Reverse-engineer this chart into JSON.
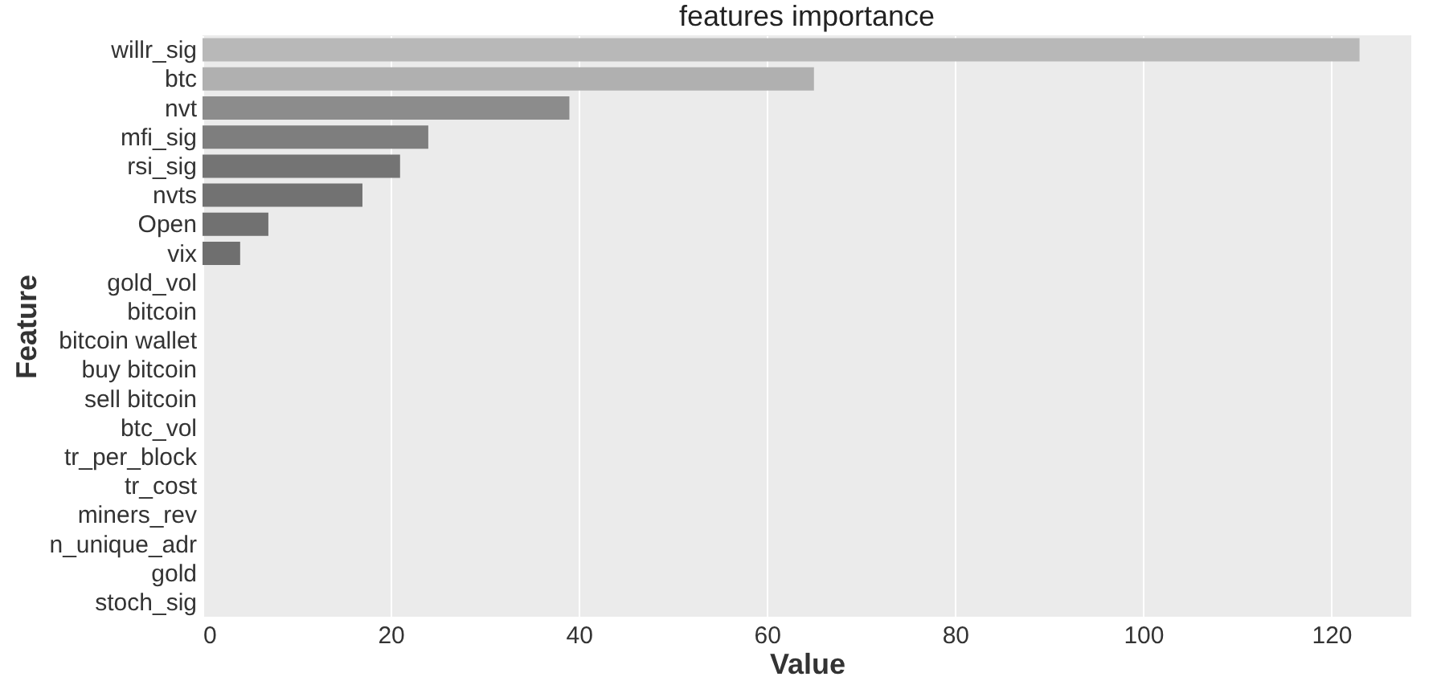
{
  "chart_data": {
    "type": "bar",
    "orientation": "horizontal",
    "title": "features importance",
    "xlabel": "Value",
    "ylabel": "Feature",
    "categories": [
      "willr_sig",
      "btc",
      "nvt",
      "mfi_sig",
      "rsi_sig",
      "nvts",
      "Open",
      "vix",
      "gold_vol",
      "bitcoin",
      "bitcoin wallet",
      "buy bitcoin",
      "sell bitcoin",
      "btc_vol",
      "tr_per_block",
      "tr_cost",
      "miners_rev",
      "n_unique_adr",
      "gold",
      "stoch_sig"
    ],
    "values": [
      123,
      65,
      39,
      24,
      21,
      17,
      7,
      4,
      0,
      0,
      0,
      0,
      0,
      0,
      0,
      0,
      0,
      0,
      0,
      0
    ],
    "colors": [
      "#b8b8b8",
      "#b0b0b0",
      "#8c8c8c",
      "#7e7e7e",
      "#747474",
      "#727272",
      "#717171",
      "#6f6f6f",
      "#6d6d6d",
      "#6b6b6b",
      "#696969",
      "#676767",
      "#656565",
      "#636363",
      "#616161",
      "#5f5f5f",
      "#5d5d5d",
      "#5b5b5b",
      "#595959",
      "#575757"
    ],
    "xlim": [
      0,
      128.5
    ],
    "xticks": [
      0,
      20,
      40,
      60,
      80,
      100,
      120
    ],
    "grid": "x"
  }
}
